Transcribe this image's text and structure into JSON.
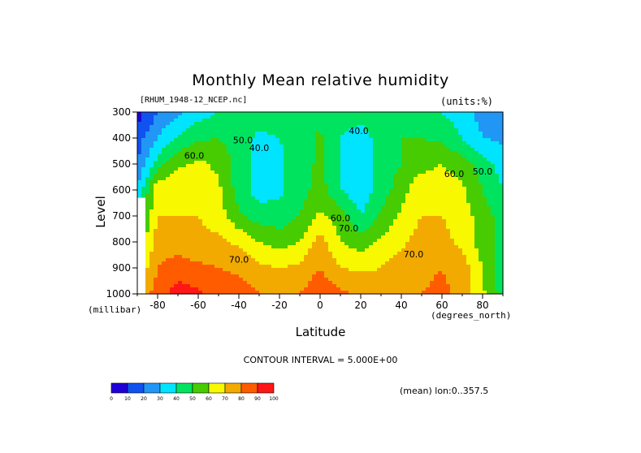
{
  "title": "Monthly Mean relative humidity",
  "dataset": "[RHUM_1948-12_NCEP.nc]",
  "units": "(units:%)",
  "ylabel": "Level",
  "ylabel_units": "(millibar)",
  "xlabel": "Latitude",
  "xlabel_units": "(degrees_north)",
  "contour_interval": "CONTOUR INTERVAL = 5.000E+00",
  "mean_note": "(mean) lon:0..357.5",
  "chart_data": {
    "type": "heatmap",
    "title": "Monthly Mean relative humidity",
    "xlabel": "Latitude",
    "ylabel": "Level",
    "x_units": "degrees_north",
    "y_units": "millibar",
    "xlim": [
      -90,
      90
    ],
    "ylim": [
      1000,
      300
    ],
    "x_ticks": [
      -80,
      -60,
      -40,
      -20,
      0,
      20,
      40,
      60,
      80
    ],
    "y_ticks": [
      300,
      400,
      500,
      600,
      700,
      800,
      900,
      1000
    ],
    "contour_interval": 5,
    "x": [
      -90,
      -80,
      -70,
      -60,
      -50,
      -40,
      -30,
      -20,
      -10,
      0,
      10,
      20,
      30,
      40,
      50,
      60,
      70,
      80,
      90
    ],
    "levels": [
      300,
      400,
      500,
      600,
      700,
      800,
      900,
      1000
    ],
    "values": [
      [
        5,
        20,
        28,
        35,
        40,
        45,
        45,
        45,
        45,
        45,
        45,
        45,
        45,
        45,
        40,
        40,
        35,
        25,
        25
      ],
      [
        15,
        30,
        42,
        48,
        50,
        45,
        38,
        40,
        45,
        52,
        40,
        35,
        45,
        50,
        50,
        48,
        40,
        30,
        28
      ],
      [
        20,
        45,
        58,
        62,
        58,
        45,
        35,
        38,
        45,
        52,
        40,
        35,
        45,
        50,
        55,
        60,
        55,
        45,
        35
      ],
      [
        30,
        68,
        68,
        65,
        62,
        45,
        35,
        38,
        45,
        55,
        40,
        33,
        45,
        55,
        70,
        68,
        62,
        50,
        40
      ],
      [
        40,
        70,
        70,
        70,
        65,
        52,
        45,
        45,
        50,
        62,
        55,
        40,
        52,
        62,
        70,
        70,
        65,
        55,
        45
      ],
      [
        50,
        75,
        75,
        73,
        72,
        68,
        60,
        55,
        60,
        75,
        60,
        55,
        62,
        68,
        75,
        73,
        68,
        55,
        45
      ],
      [
        60,
        80,
        85,
        82,
        80,
        78,
        72,
        70,
        72,
        80,
        70,
        68,
        70,
        75,
        78,
        80,
        75,
        60,
        45
      ],
      [
        70,
        85,
        95,
        92,
        85,
        85,
        80,
        78,
        80,
        88,
        82,
        78,
        78,
        80,
        80,
        82,
        78,
        62,
        45
      ]
    ],
    "contour_labels": [
      {
        "text": "60.0",
        "lat": -62,
        "level": 480
      },
      {
        "text": "50.0",
        "lat": -38,
        "level": 420
      },
      {
        "text": "40.0",
        "lat": -30,
        "level": 450
      },
      {
        "text": "40.0",
        "lat": 19,
        "level": 385
      },
      {
        "text": "60.0",
        "lat": 10,
        "level": 720
      },
      {
        "text": "70.0",
        "lat": 14,
        "level": 760
      },
      {
        "text": "70.0",
        "lat": -40,
        "level": 880
      },
      {
        "text": "70.0",
        "lat": 46,
        "level": 860
      },
      {
        "text": "60.0",
        "lat": 66,
        "level": 550
      },
      {
        "text": "50.0",
        "lat": 80,
        "level": 540
      }
    ],
    "colorbar": {
      "ticks": [
        "0",
        "10",
        "20",
        "30",
        "40",
        "50",
        "60",
        "70",
        "80",
        "90",
        "100"
      ],
      "colors": [
        "#7a0fa7",
        "#1f00d8",
        "#0f52ef",
        "#2196f5",
        "#00e4ff",
        "#00e35f",
        "#46cc00",
        "#f8f800",
        "#f2aa00",
        "#ff5c00",
        "#ff1616"
      ]
    }
  }
}
